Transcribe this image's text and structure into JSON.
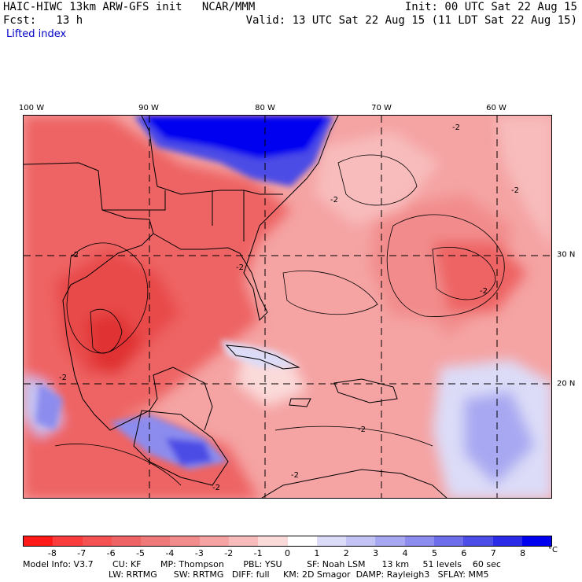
{
  "header": {
    "title_left": "HAIC-HIWC 13km ARW-GFS init   NCAR/MMM",
    "fcst": "Fcst:   13 h",
    "init": "Init: 00 UTC Sat 22 Aug 15",
    "valid": "Valid: 13 UTC Sat 22 Aug 15 (11 LDT Sat 22 Aug 15)",
    "field": "Lifted index"
  },
  "map": {
    "longitude_labels": [
      "100 W",
      "90 W",
      "80 W",
      "70 W",
      "60 W"
    ],
    "latitude_labels": [
      "30 N",
      "20 N"
    ],
    "contour_labels": [
      "-2",
      "-2",
      "-2",
      "-2",
      "-2",
      "-2",
      "-2",
      "-2",
      "-2",
      "-2"
    ]
  },
  "colorbar": {
    "labels": [
      "-8",
      "-7",
      "-6",
      "-5",
      "-4",
      "-3",
      "-2",
      "-1",
      "0",
      "1",
      "2",
      "3",
      "4",
      "5",
      "6",
      "7",
      "8"
    ],
    "unit": "°C",
    "colors": [
      "#ff1a1a",
      "#fa3c3c",
      "#f45252",
      "#ee6464",
      "#ef7878",
      "#f28c8c",
      "#f5a3a3",
      "#f8bcbc",
      "#fbdada",
      "#ffffff",
      "#dcdcf8",
      "#c3c3f5",
      "#a8a8f2",
      "#8c8cee",
      "#6e6eea",
      "#4c4ce6",
      "#2a2ae8",
      "#0000f0"
    ]
  },
  "model_info": {
    "line1": "Model Info: V3.7       CU: KF       MP: Thompson       PBL: YSU         SF: Noah LSM      13 km     51 levels    60 sec",
    "line2": "LW: RRTMG      SW: RRTMG   DIFF: full     KM: 2D Smagor  DAMP: Rayleigh3   SFLAY: MM5"
  }
}
